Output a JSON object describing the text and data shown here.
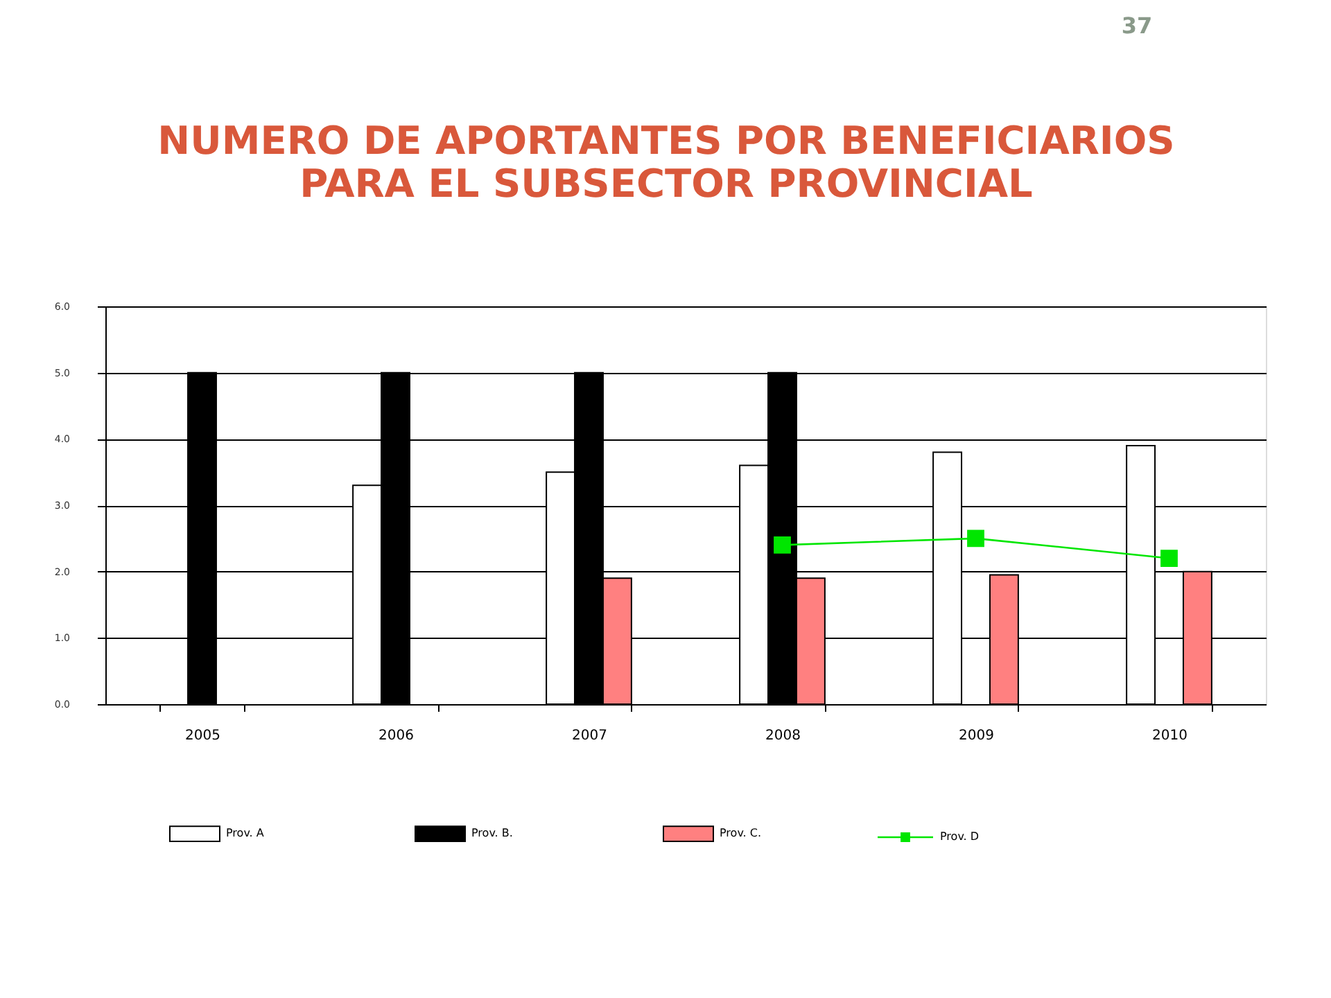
{
  "chart_data": {
    "type": "bar",
    "title": "NUMERO DE APORTANTES POR BENEFICIARIOS\nPARA EL SUBSECTOR PROVINCIAL",
    "categories": [
      "2005",
      "2006",
      "2007",
      "2008",
      "2009",
      "2010"
    ],
    "series": [
      {
        "name": "Prov. A",
        "color": "#ffffff",
        "values": [
          null,
          3.3,
          3.5,
          3.6,
          3.8,
          3.9
        ]
      },
      {
        "name": "Prov. B.",
        "color": "#000000",
        "values": [
          5.0,
          5.0,
          5.0,
          5.0,
          null,
          null
        ]
      },
      {
        "name": "Prov. C.",
        "color": "#ff8080",
        "values": [
          null,
          null,
          1.9,
          1.9,
          1.95,
          2.0
        ]
      },
      {
        "name": "Prov. D",
        "type": "line",
        "color": "#00e600",
        "marker": "square",
        "line_style": "solid",
        "values": [
          null,
          null,
          null,
          2.4,
          2.5,
          2.2
        ]
      }
    ],
    "ylim": [
      0,
      6
    ],
    "yticks": [
      {
        "value": 0,
        "label": "0.0"
      },
      {
        "value": 1,
        "label": "1.0"
      },
      {
        "value": 2,
        "label": "2.0"
      },
      {
        "value": 3,
        "label": "3.0"
      },
      {
        "value": 4,
        "label": "4.0"
      },
      {
        "value": 5,
        "label": "5.0"
      },
      {
        "value": 6,
        "label": "6.0"
      }
    ],
    "grid": "y",
    "legend": "bottom",
    "annotations": [
      "37"
    ]
  }
}
